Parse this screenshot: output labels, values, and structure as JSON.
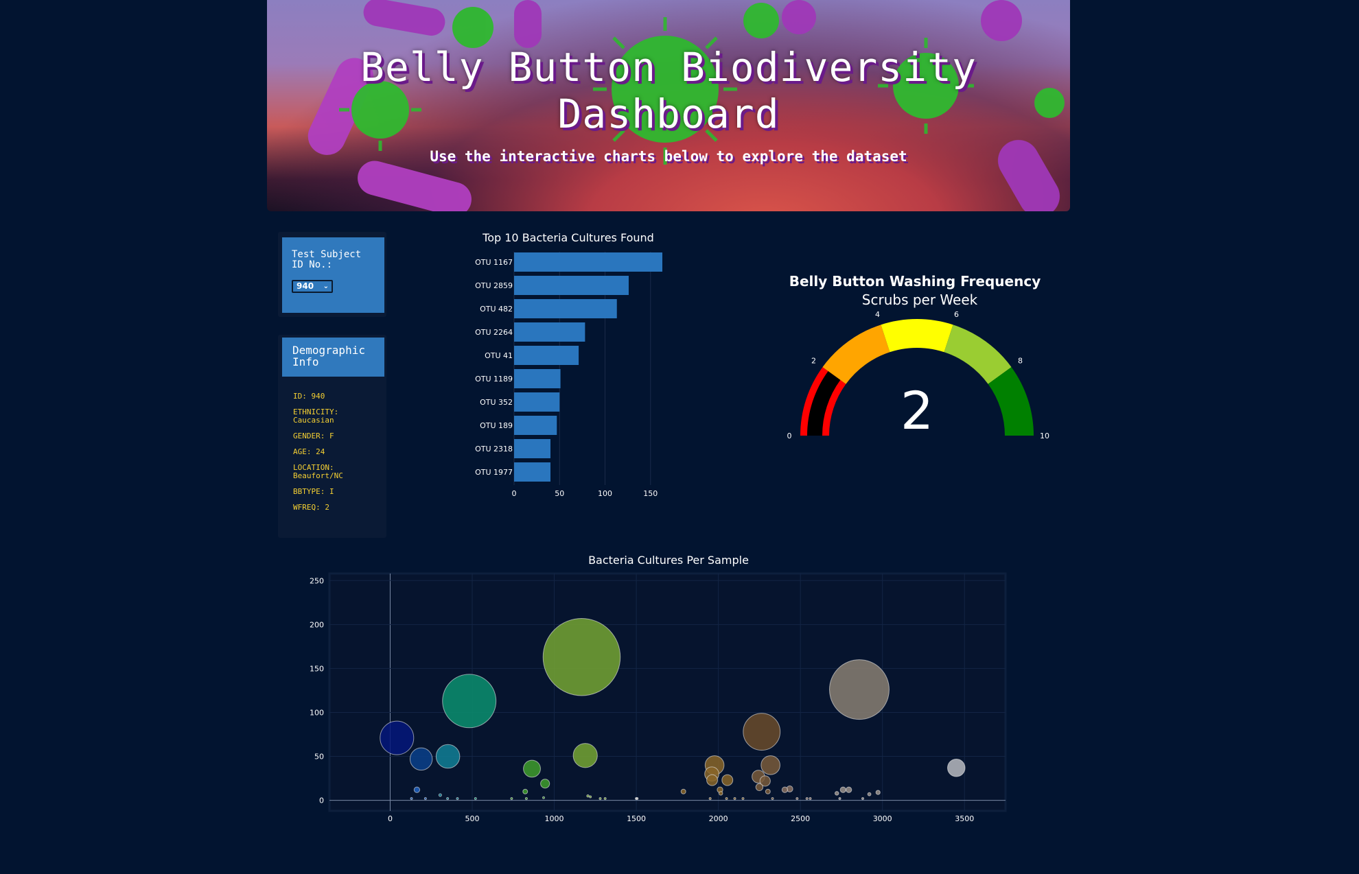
{
  "header": {
    "title": "Belly Button Biodiversity Dashboard",
    "subtitle": "Use the interactive charts below to explore the dataset"
  },
  "selector": {
    "label": "Test Subject ID No.:",
    "selected": "940"
  },
  "demographics": {
    "title": "Demographic Info",
    "items": [
      "ID: 940",
      "ETHNICITY: Caucasian",
      "GENDER: F",
      "AGE: 24",
      "LOCATION: Beaufort/NC",
      "BBTYPE: I",
      "WFREQ: 2"
    ]
  },
  "colors": {
    "page_bg": "#021430",
    "panel_blue": "#3079bd",
    "bar_blue": "#2a76be",
    "demo_text": "#f5d033"
  },
  "chart_data": [
    {
      "type": "bar",
      "orientation": "horizontal",
      "title": "Top 10 Bacteria Cultures Found",
      "categories": [
        "OTU 1167",
        "OTU 2859",
        "OTU 482",
        "OTU 2264",
        "OTU 41",
        "OTU 1189",
        "OTU 352",
        "OTU 189",
        "OTU 2318",
        "OTU 1977"
      ],
      "values": [
        163,
        126,
        113,
        78,
        71,
        51,
        50,
        47,
        40,
        40
      ],
      "xlim": [
        0,
        163
      ],
      "xticks": [
        0,
        50,
        100,
        150
      ]
    },
    {
      "type": "gauge",
      "title": "Belly Button Washing Frequency",
      "subtitle": "Scrubs per Week",
      "value": 2,
      "range": [
        0,
        10
      ],
      "tick_labels": [
        "0",
        "2",
        "4",
        "6",
        "8",
        "10"
      ],
      "steps": [
        {
          "range": [
            0,
            2
          ],
          "color": "#ff0000"
        },
        {
          "range": [
            2,
            4
          ],
          "color": "#ffa500"
        },
        {
          "range": [
            4,
            6
          ],
          "color": "#ffff00"
        },
        {
          "range": [
            6,
            8
          ],
          "color": "#9acd32"
        },
        {
          "range": [
            8,
            10
          ],
          "color": "#008000"
        }
      ],
      "bar_color": "#000000"
    },
    {
      "type": "scatter",
      "title": "Bacteria Cultures Per Sample",
      "xlim": [
        -370,
        3750
      ],
      "ylim": [
        -12,
        258
      ],
      "xticks": [
        0,
        500,
        1000,
        1500,
        2000,
        2500,
        3000,
        3500
      ],
      "yticks": [
        0,
        50,
        100,
        150,
        200,
        250
      ],
      "points": [
        {
          "x": 41,
          "y": 71,
          "color": "#05167a"
        },
        {
          "x": 189,
          "y": 47,
          "color": "#0b3f8a"
        },
        {
          "x": 352,
          "y": 50,
          "color": "#127f95"
        },
        {
          "x": 482,
          "y": 113,
          "color": "#0c8f6f"
        },
        {
          "x": 864,
          "y": 36,
          "color": "#3f9c2c"
        },
        {
          "x": 944,
          "y": 19,
          "color": "#3f9c2c"
        },
        {
          "x": 1167,
          "y": 163,
          "color": "#75a533"
        },
        {
          "x": 1189,
          "y": 51,
          "color": "#75a533"
        },
        {
          "x": 1977,
          "y": 40,
          "color": "#8a6528"
        },
        {
          "x": 1960,
          "y": 30,
          "color": "#8a6528"
        },
        {
          "x": 1962,
          "y": 23,
          "color": "#8a6528"
        },
        {
          "x": 2055,
          "y": 23,
          "color": "#8a6528"
        },
        {
          "x": 2264,
          "y": 78,
          "color": "#6b4b2a"
        },
        {
          "x": 2244,
          "y": 27,
          "color": "#7a5a3a"
        },
        {
          "x": 2318,
          "y": 40,
          "color": "#7a5a3a"
        },
        {
          "x": 2285,
          "y": 22,
          "color": "#7a5a3a"
        },
        {
          "x": 2250,
          "y": 15,
          "color": "#7a5a3a"
        },
        {
          "x": 2859,
          "y": 126,
          "color": "#8a7f72"
        },
        {
          "x": 3450,
          "y": 37,
          "color": "#b8bac0"
        },
        {
          "x": 163,
          "y": 12,
          "color": "#2060c0"
        },
        {
          "x": 823,
          "y": 10,
          "color": "#3f9c2c"
        },
        {
          "x": 1787,
          "y": 10,
          "color": "#8a6528"
        },
        {
          "x": 2010,
          "y": 12,
          "color": "#8a6528"
        },
        {
          "x": 2405,
          "y": 12,
          "color": "#8a7060"
        },
        {
          "x": 2435,
          "y": 13,
          "color": "#8a7060"
        },
        {
          "x": 2795,
          "y": 12,
          "color": "#9a8f88"
        },
        {
          "x": 2760,
          "y": 12,
          "color": "#9a8f88"
        },
        {
          "x": 2973,
          "y": 9,
          "color": "#9a8f88"
        },
        {
          "x": 2722,
          "y": 8,
          "color": "#9a8f88"
        },
        {
          "x": 2920,
          "y": 7,
          "color": "#9a8f88"
        },
        {
          "x": 305,
          "y": 6,
          "color": "#127f95"
        },
        {
          "x": 2302,
          "y": 10,
          "color": "#7a5a3a"
        },
        {
          "x": 2015,
          "y": 8,
          "color": "#8a6528"
        },
        {
          "x": 1205,
          "y": 5,
          "color": "#75a533"
        },
        {
          "x": 1220,
          "y": 4,
          "color": "#75a533"
        },
        {
          "x": 935,
          "y": 3,
          "color": "#3f9c2c"
        },
        {
          "x": 130,
          "y": 2,
          "color": "#2060c0"
        },
        {
          "x": 215,
          "y": 2,
          "color": "#2060c0"
        },
        {
          "x": 350,
          "y": 2,
          "color": "#127f95"
        },
        {
          "x": 410,
          "y": 2,
          "color": "#127f95"
        },
        {
          "x": 520,
          "y": 2,
          "color": "#0c8f6f"
        },
        {
          "x": 740,
          "y": 2,
          "color": "#3f9c2c"
        },
        {
          "x": 830,
          "y": 2,
          "color": "#3f9c2c"
        },
        {
          "x": 1280,
          "y": 2,
          "color": "#75a533"
        },
        {
          "x": 1310,
          "y": 2,
          "color": "#75a533"
        },
        {
          "x": 1500,
          "y": 2,
          "color": "#cccccc"
        },
        {
          "x": 1505,
          "y": 2,
          "color": "#cccccc"
        },
        {
          "x": 1950,
          "y": 2,
          "color": "#8a6528"
        },
        {
          "x": 2050,
          "y": 2,
          "color": "#8a6528"
        },
        {
          "x": 2100,
          "y": 2,
          "color": "#8a6528"
        },
        {
          "x": 2150,
          "y": 2,
          "color": "#8a6528"
        },
        {
          "x": 2330,
          "y": 2,
          "color": "#7a5a3a"
        },
        {
          "x": 2480,
          "y": 2,
          "color": "#8a7060"
        },
        {
          "x": 2540,
          "y": 2,
          "color": "#8a7060"
        },
        {
          "x": 2560,
          "y": 2,
          "color": "#8a7060"
        },
        {
          "x": 2740,
          "y": 2,
          "color": "#9a8f88"
        },
        {
          "x": 2880,
          "y": 2,
          "color": "#9a8f88"
        }
      ]
    }
  ]
}
